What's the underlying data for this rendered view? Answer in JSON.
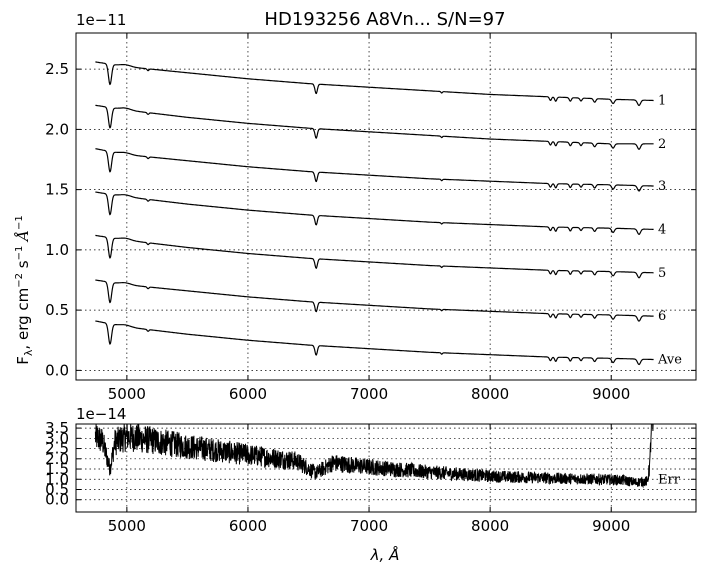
{
  "chart_data": [
    {
      "type": "line",
      "title": "HD193256  A8Vn...  S/N=97",
      "scale_label": "1e−11",
      "ylabel_main": "F",
      "ylabel_sub": "λ",
      "ylabel_rest": ", erg cm",
      "ylabel_exp1": "−2",
      "ylabel_s": " s",
      "ylabel_exp2": "−1",
      "ylabel_A": " Å",
      "ylabel_exp3": "−1",
      "xlim": [
        4580,
        9700
      ],
      "ylim": [
        -0.08,
        2.8
      ],
      "x_ticks": [
        5000,
        6000,
        7000,
        8000,
        9000
      ],
      "x_tick_labels": [
        "5000",
        "6000",
        "7000",
        "8000",
        "9000"
      ],
      "y_ticks": [
        0.0,
        0.5,
        1.0,
        1.5,
        2.0,
        2.5
      ],
      "y_tick_labels": [
        "0.0",
        "0.5",
        "1.0",
        "1.5",
        "2.0",
        "2.5"
      ],
      "grid": true,
      "x_range": [
        4740,
        9350
      ],
      "series": [
        {
          "name": "1",
          "anchor_x": [
            4740,
            5000,
            5500,
            6000,
            6500,
            7000,
            7500,
            8000,
            8500,
            9000,
            9350
          ],
          "anchor_y": [
            2.56,
            2.52,
            2.47,
            2.42,
            2.38,
            2.35,
            2.32,
            2.29,
            2.27,
            2.25,
            2.24
          ]
        },
        {
          "name": "2",
          "anchor_x": [
            4740,
            5000,
            5500,
            6000,
            6500,
            7000,
            7500,
            8000,
            8500,
            9000,
            9350
          ],
          "anchor_y": [
            2.2,
            2.16,
            2.1,
            2.05,
            2.01,
            1.98,
            1.95,
            1.92,
            1.9,
            1.88,
            1.88
          ]
        },
        {
          "name": "3",
          "anchor_x": [
            4740,
            5000,
            5500,
            6000,
            6500,
            7000,
            7500,
            8000,
            8500,
            9000,
            9350
          ],
          "anchor_y": [
            1.84,
            1.79,
            1.74,
            1.69,
            1.65,
            1.62,
            1.59,
            1.57,
            1.55,
            1.54,
            1.53
          ]
        },
        {
          "name": "4",
          "anchor_x": [
            4740,
            5000,
            5500,
            6000,
            6500,
            7000,
            7500,
            8000,
            8500,
            9000,
            9350
          ],
          "anchor_y": [
            1.48,
            1.44,
            1.38,
            1.33,
            1.29,
            1.26,
            1.23,
            1.21,
            1.19,
            1.18,
            1.17
          ]
        },
        {
          "name": "5",
          "anchor_x": [
            4740,
            5000,
            5500,
            6000,
            6500,
            7000,
            7500,
            8000,
            8500,
            9000,
            9350
          ],
          "anchor_y": [
            1.12,
            1.08,
            1.02,
            0.97,
            0.93,
            0.9,
            0.87,
            0.85,
            0.83,
            0.82,
            0.81
          ]
        },
        {
          "name": "6",
          "anchor_x": [
            4740,
            5000,
            5500,
            6000,
            6500,
            7000,
            7500,
            8000,
            8500,
            9000,
            9350
          ],
          "anchor_y": [
            0.75,
            0.71,
            0.66,
            0.61,
            0.57,
            0.54,
            0.51,
            0.49,
            0.47,
            0.46,
            0.45
          ]
        },
        {
          "name": "Ave",
          "anchor_x": [
            4740,
            5000,
            5500,
            6000,
            6500,
            7000,
            7500,
            8000,
            8500,
            9000,
            9350
          ],
          "anchor_y": [
            0.41,
            0.36,
            0.3,
            0.25,
            0.21,
            0.18,
            0.15,
            0.13,
            0.11,
            0.1,
            0.09
          ]
        }
      ],
      "absorption_lines": [
        {
          "wavelength": 4861,
          "depth": 0.17,
          "width": 18
        },
        {
          "wavelength": 5175,
          "depth": 0.015,
          "width": 10
        },
        {
          "wavelength": 6563,
          "depth": 0.08,
          "width": 14
        },
        {
          "wavelength": 7600,
          "depth": 0.012,
          "width": 8
        },
        {
          "wavelength": 8498,
          "depth": 0.03,
          "width": 12
        },
        {
          "wavelength": 8542,
          "depth": 0.035,
          "width": 12
        },
        {
          "wavelength": 8662,
          "depth": 0.03,
          "width": 12
        },
        {
          "wavelength": 8750,
          "depth": 0.025,
          "width": 12
        },
        {
          "wavelength": 8863,
          "depth": 0.03,
          "width": 14
        },
        {
          "wavelength": 9015,
          "depth": 0.035,
          "width": 16
        },
        {
          "wavelength": 9229,
          "depth": 0.045,
          "width": 18
        }
      ]
    },
    {
      "type": "line",
      "scale_label": "1e−14",
      "xlabel_lambda": "λ",
      "xlabel_rest": ", Å",
      "xlim": [
        4580,
        9700
      ],
      "ylim": [
        -0.6,
        3.7
      ],
      "x_ticks": [
        5000,
        6000,
        7000,
        8000,
        9000
      ],
      "x_tick_labels": [
        "5000",
        "6000",
        "7000",
        "8000",
        "9000"
      ],
      "y_ticks": [
        0.0,
        0.5,
        1.0,
        1.5,
        2.0,
        2.5,
        3.0,
        3.5
      ],
      "y_tick_labels": [
        "0.0",
        "0.5",
        "1.0",
        "1.5",
        "2.0",
        "2.5",
        "3.0",
        "3.5"
      ],
      "grid": true,
      "series": [
        {
          "name": "Err",
          "x": [
            4740,
            4800,
            4861,
            4900,
            5000,
            5200,
            5500,
            6000,
            6400,
            6563,
            6700,
            7000,
            7500,
            8000,
            8500,
            8900,
            9100,
            9200,
            9300,
            9320,
            9330,
            9350
          ],
          "y": [
            3.1,
            2.85,
            1.5,
            2.8,
            3.1,
            2.9,
            2.6,
            2.2,
            1.9,
            1.3,
            1.8,
            1.6,
            1.35,
            1.15,
            1.05,
            1.0,
            0.95,
            0.85,
            0.9,
            1.8,
            3.5,
            3.6
          ]
        }
      ]
    }
  ]
}
